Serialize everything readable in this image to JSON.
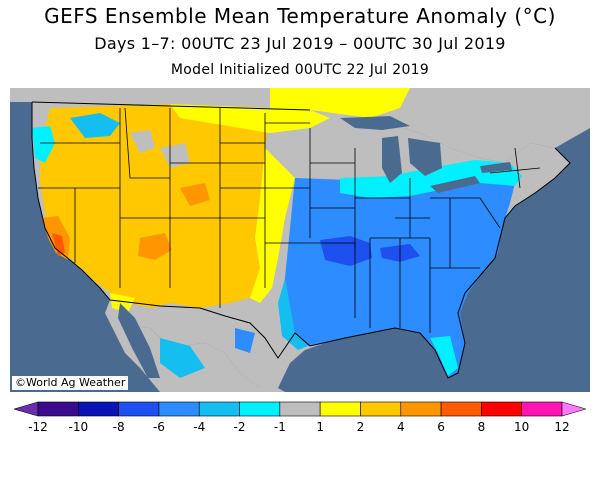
{
  "header": {
    "title": "GEFS Ensemble Mean Temperature Anomaly (°C)",
    "subtitle": "Days 1–7: 00UTC 23 Jul 2019 – 00UTC 30 Jul 2019",
    "init": "Model Initialized 00UTC 22 Jul 2019"
  },
  "map": {
    "credit": "©World Ag Weather",
    "colors": {
      "ocean": "#4a6b8f",
      "land_neutral": "#bebebe",
      "lakes": "#4a6b8f"
    },
    "anomaly_regions": [
      "Western US warm +1 to +4 °C",
      "Central/Southern California +4 to +8 °C",
      "Northern Plains / Upper Midwest +1 to +2 °C",
      "Eastern US / Southeast cool -1 to -4 °C",
      "Mid-South (Arkansas/Tennessee) -4 to -6 °C",
      "Northeast near normal to -2 °C"
    ]
  },
  "colorbar": {
    "colors": [
      "#6a2fb0",
      "#3c0a8c",
      "#0a14b4",
      "#1e50f0",
      "#2d8cff",
      "#14bef0",
      "#00f0ff",
      "#bebebe",
      "#ffff00",
      "#ffc800",
      "#ff9600",
      "#ff5a00",
      "#ff0000",
      "#ff14b4",
      "#ff78ff"
    ],
    "labels": [
      "-12",
      "-10",
      "-8",
      "-6",
      "-4",
      "-2",
      "-1",
      "1",
      "2",
      "4",
      "6",
      "8",
      "10",
      "12"
    ]
  }
}
